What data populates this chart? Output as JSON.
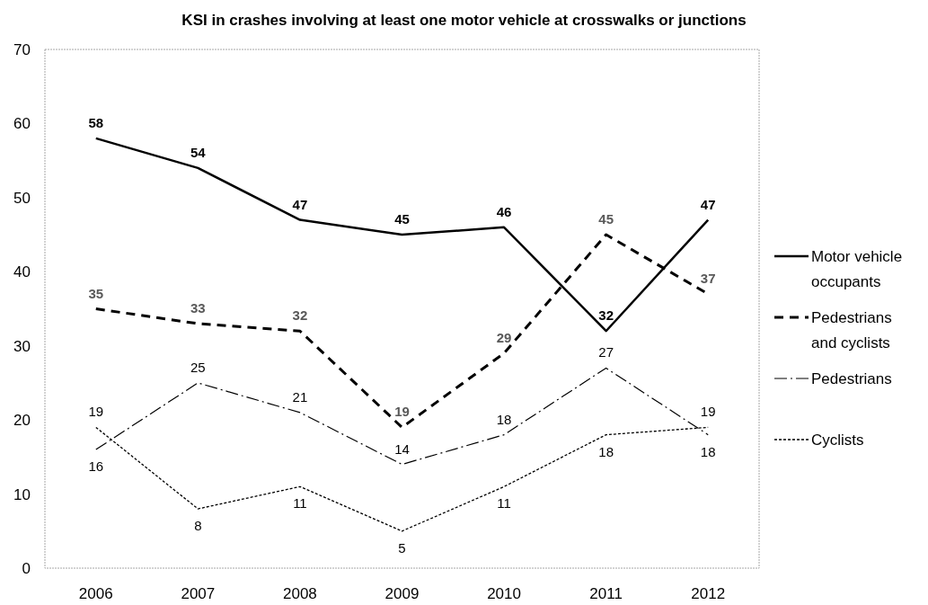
{
  "chart_data": {
    "type": "line",
    "title": "KSI in crashes involving at least one motor vehicle at crosswalks or junctions",
    "categories": [
      "2006",
      "2007",
      "2008",
      "2009",
      "2010",
      "2011",
      "2012"
    ],
    "series": [
      {
        "name": "Motor vehicle occupants",
        "color": "#000000",
        "line_style": "solid",
        "values": [
          58,
          54,
          47,
          45,
          46,
          32,
          47
        ]
      },
      {
        "name": "Pedestrians and cyclists",
        "color": "#000000",
        "line_style": "dashed",
        "values": [
          35,
          33,
          32,
          19,
          29,
          45,
          37
        ]
      },
      {
        "name": "Pedestrians",
        "color": "#000000",
        "line_style": "dashdot",
        "values": [
          16,
          25,
          21,
          14,
          18,
          27,
          18
        ]
      },
      {
        "name": "Cyclists",
        "color": "#000000",
        "line_style": "dotted",
        "values": [
          19,
          8,
          11,
          5,
          11,
          18,
          19
        ]
      }
    ],
    "ylim": [
      0,
      70
    ],
    "yticks": [
      0,
      10,
      20,
      30,
      40,
      50,
      60,
      70
    ],
    "grid": false,
    "legend": "right",
    "data_labels": true
  }
}
